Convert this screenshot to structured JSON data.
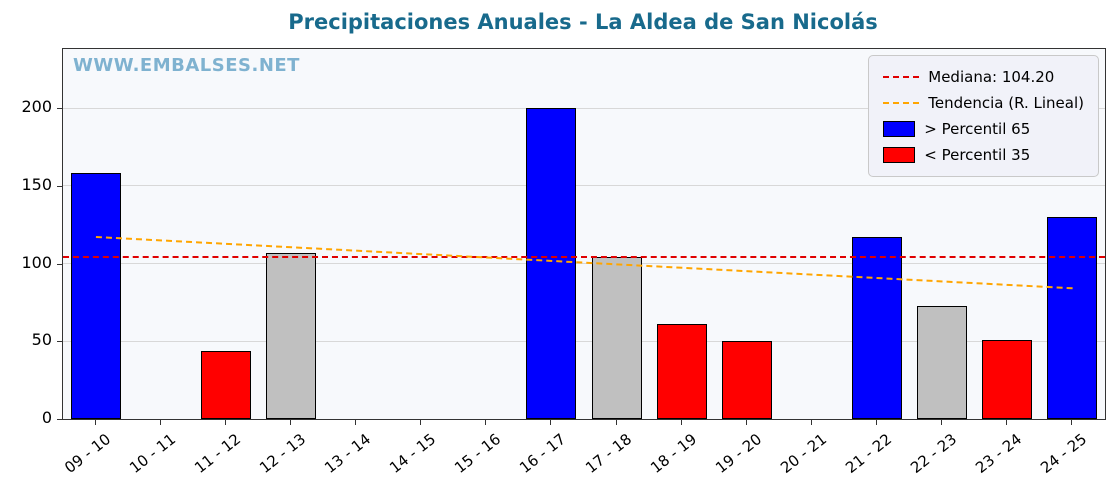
{
  "watermark": "WWW.EMBALSES.NET",
  "colors": {
    "title": "#186a8c",
    "watermark": "#7fb2d0",
    "bar_high": "#0000ff",
    "bar_low": "#ff0000",
    "bar_mid": "#c0c0c0",
    "median": "#e00000",
    "trend": "#ffa500",
    "grid": "#d8d8d8",
    "axis": "#333333"
  },
  "chart_data": {
    "type": "bar",
    "title": "Precipitaciones Anuales - La Aldea de San Nicolás",
    "xlabel": "",
    "ylabel": "",
    "categories": [
      "09 - 10",
      "10 - 11",
      "11 - 12",
      "12 - 13",
      "13 - 14",
      "14 - 15",
      "15 - 16",
      "16 - 17",
      "17 - 18",
      "18 - 19",
      "19 - 20",
      "20 - 21",
      "21 - 22",
      "22 - 23",
      "23 - 24",
      "24 - 25"
    ],
    "values": [
      158,
      null,
      44,
      107,
      null,
      null,
      null,
      200,
      104,
      61,
      50,
      null,
      117,
      73,
      51,
      130
    ],
    "bar_classes": [
      "high",
      "none",
      "low",
      "mid",
      "none",
      "none",
      "none",
      "high",
      "mid",
      "low",
      "low",
      "none",
      "high",
      "mid",
      "low",
      "high"
    ],
    "yticks": [
      0,
      50,
      100,
      150,
      200
    ],
    "ylim": [
      0,
      238
    ],
    "grid": "horizontal",
    "median": 104.2,
    "trend": {
      "start": 118,
      "end": 85
    },
    "legend_position": "upper right",
    "legend": [
      {
        "label": "Mediana: 104.20",
        "type": "line",
        "color": "#e00000"
      },
      {
        "label": "Tendencia (R. Lineal)",
        "type": "line",
        "color": "#ffa500"
      },
      {
        "label": "> Percentil 65",
        "type": "patch",
        "color": "#0000ff"
      },
      {
        "label": "< Percentil 35",
        "type": "patch",
        "color": "#ff0000"
      }
    ]
  }
}
